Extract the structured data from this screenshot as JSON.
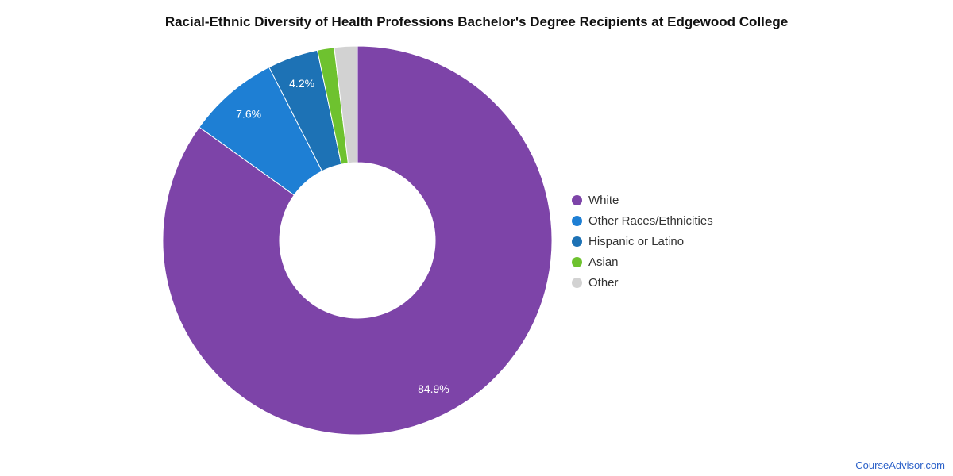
{
  "chart_data": {
    "type": "pie",
    "subtype": "donut",
    "title": "Racial-Ethnic Diversity of Health Professions Bachelor's Degree Recipients at Edgewood College",
    "legend_position": "right",
    "start_angle_deg": 0,
    "min_label_pct": 3,
    "slices": [
      {
        "label": "White",
        "value": 84.9,
        "display": "84.9%",
        "color": "#7d44a8"
      },
      {
        "label": "Other Races/Ethnicities",
        "value": 7.6,
        "display": "7.6%",
        "color": "#1e7fd4"
      },
      {
        "label": "Hispanic or Latino",
        "value": 4.2,
        "display": "4.2%",
        "color": "#1d72b5"
      },
      {
        "label": "Asian",
        "value": 1.4,
        "display": "",
        "color": "#6ec22f"
      },
      {
        "label": "Other",
        "value": 1.9,
        "display": "",
        "color": "#d2d2d2"
      }
    ]
  },
  "footer": {
    "link_text": "CourseAdvisor.com",
    "link_color": "#2d62c9"
  },
  "colors": {
    "background": "#ffffff",
    "title_text": "#111111",
    "slice_label_text": "#ffffff",
    "legend_text": "#333333"
  }
}
